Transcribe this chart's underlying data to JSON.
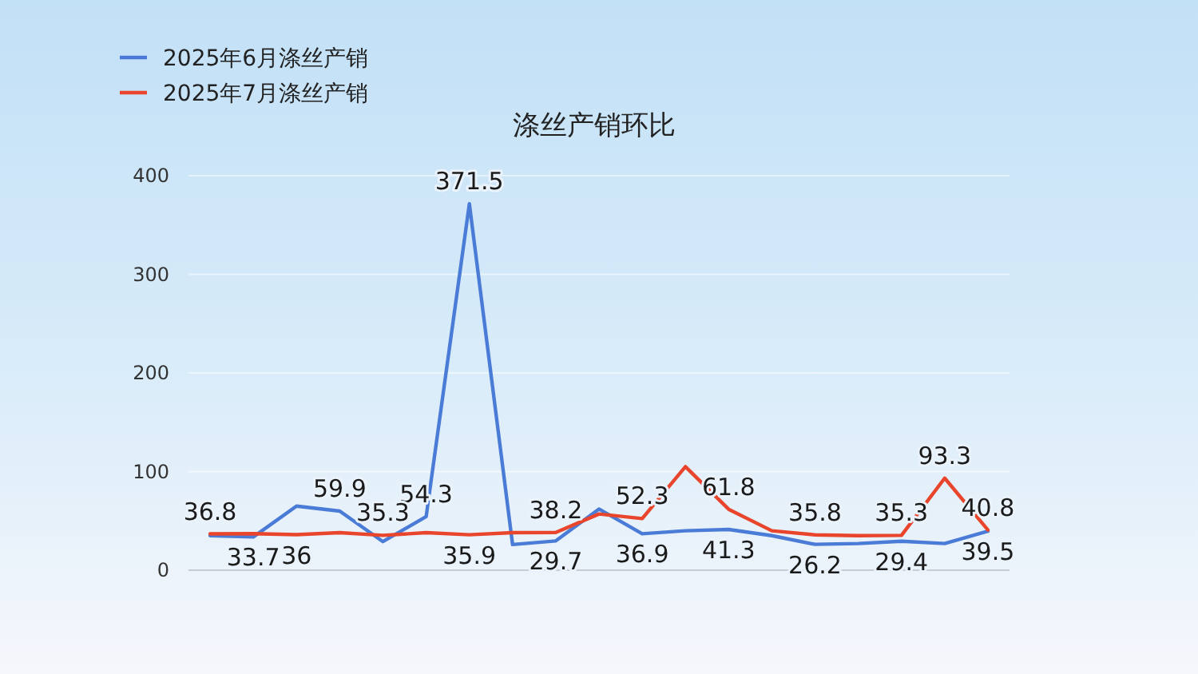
{
  "chart_data": {
    "type": "line",
    "title": "涤丝产销环比",
    "categories": [
      null,
      null,
      null,
      null,
      null,
      null,
      null,
      null,
      null,
      null,
      null,
      null,
      null,
      null,
      null,
      null,
      null,
      null,
      null
    ],
    "series": [
      {
        "name": "2025年6月涤丝产销",
        "color": "#4a7bd6",
        "values": [
          35,
          33.7,
          65,
          59.9,
          29,
          54.3,
          371.5,
          26,
          29.7,
          62,
          36.9,
          40,
          41.3,
          35,
          26.2,
          27,
          29.4,
          27,
          39.5
        ],
        "value_labels": [
          null,
          "33.7",
          null,
          "59.9",
          null,
          "54.3",
          "371.5",
          null,
          "29.7",
          null,
          "36.9",
          null,
          "41.3",
          null,
          "26.2",
          null,
          "29.4",
          null,
          "39.5"
        ]
      },
      {
        "name": "2025年7月涤丝产销",
        "color": "#e8452c",
        "values": [
          36.8,
          37,
          36,
          38,
          35.3,
          38,
          35.9,
          38,
          38.2,
          57,
          52.3,
          105,
          61.8,
          40,
          35.8,
          35,
          35.3,
          93.3,
          40.8
        ],
        "value_labels": [
          "36.8",
          null,
          "36",
          null,
          "35.3",
          null,
          "35.9",
          null,
          "38.2",
          null,
          "52.3",
          null,
          "61.8",
          null,
          "35.8",
          null,
          "35.3",
          "93.3",
          "40.8"
        ]
      }
    ],
    "ylim": [
      0,
      400
    ],
    "yticks": [
      0,
      100,
      200,
      300,
      400
    ],
    "grid": "y",
    "legend": "top left",
    "marker": "none",
    "line_style": "solid"
  }
}
